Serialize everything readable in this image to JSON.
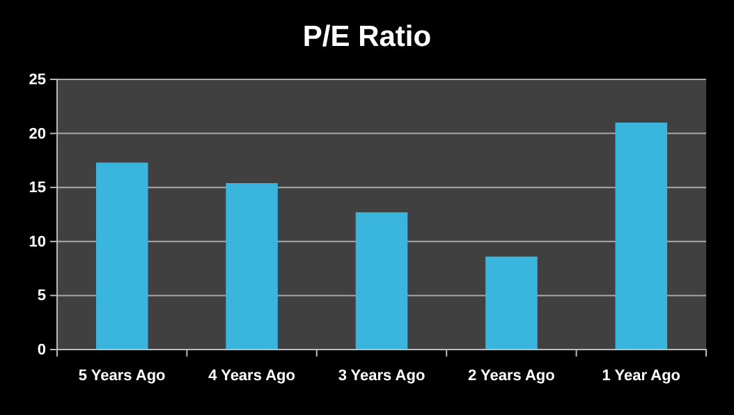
{
  "chart_data": {
    "type": "bar",
    "title": "P/E Ratio",
    "categories": [
      "5 Years Ago",
      "4 Years Ago",
      "3 Years Ago",
      "2 Years Ago",
      "1 Year Ago"
    ],
    "values": [
      17.3,
      15.4,
      12.7,
      8.6,
      21.0
    ],
    "color": "#3ab5de",
    "ylim": [
      0,
      25
    ],
    "yticks": [
      0,
      5,
      10,
      15,
      20,
      25
    ],
    "grid": "y"
  }
}
